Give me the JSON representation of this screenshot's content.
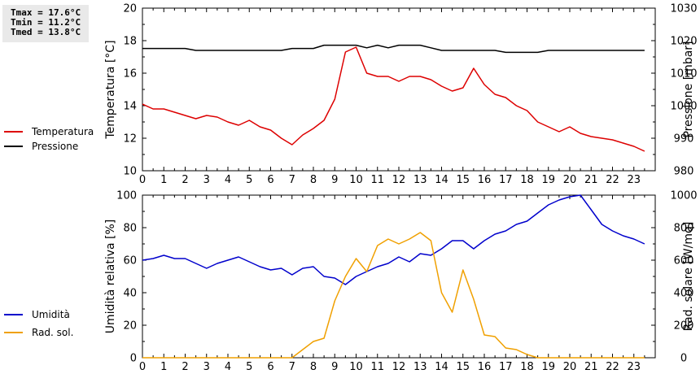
{
  "stats": {
    "tmax": "Tmax = 17.6°C",
    "tmin": "Tmin = 11.2°C",
    "tmed": "Tmed = 13.8°C"
  },
  "chart_data": [
    {
      "type": "line",
      "xlim": [
        0,
        24
      ],
      "x_ticks": [
        0,
        1,
        2,
        3,
        4,
        5,
        6,
        7,
        8,
        9,
        10,
        11,
        12,
        13,
        14,
        15,
        16,
        17,
        18,
        19,
        20,
        21,
        22,
        23
      ],
      "left_axis": {
        "label": "Temperatura [°C]",
        "ylim": [
          10,
          20
        ],
        "ticks": [
          10,
          12,
          14,
          16,
          18,
          20
        ]
      },
      "right_axis": {
        "label": "Pressione [mbar]",
        "ylim": [
          980,
          1030
        ],
        "ticks": [
          980,
          990,
          1000,
          1010,
          1020,
          1030
        ]
      },
      "legend_position": "left",
      "series": [
        {
          "name": "Temperatura",
          "axis": "left",
          "color": "#dd0000",
          "x": [
            0,
            0.5,
            1,
            1.5,
            2,
            2.5,
            3,
            3.5,
            4,
            4.5,
            5,
            5.5,
            6,
            6.5,
            7,
            7.5,
            8,
            8.5,
            9,
            9.5,
            10,
            10.5,
            11,
            11.5,
            12,
            12.5,
            13,
            13.5,
            14,
            14.5,
            15,
            15.5,
            16,
            16.5,
            17,
            17.5,
            18,
            18.5,
            19,
            19.5,
            20,
            20.5,
            21,
            21.5,
            22,
            22.5,
            23,
            23.5
          ],
          "y": [
            14.1,
            13.8,
            13.8,
            13.6,
            13.4,
            13.2,
            13.4,
            13.3,
            13.0,
            12.8,
            13.1,
            12.7,
            12.5,
            12.0,
            11.6,
            12.2,
            12.6,
            13.1,
            14.4,
            17.3,
            17.6,
            16.0,
            15.8,
            15.8,
            15.5,
            15.8,
            15.8,
            15.6,
            15.2,
            14.9,
            15.1,
            16.3,
            15.3,
            14.7,
            14.5,
            14.0,
            13.7,
            13.0,
            12.7,
            12.4,
            12.7,
            12.3,
            12.1,
            12.0,
            11.9,
            11.7,
            11.5,
            11.2
          ]
        },
        {
          "name": "Pressione",
          "axis": "right",
          "color": "#000000",
          "x": [
            0,
            1,
            2,
            2.5,
            3,
            4,
            5,
            6,
            6.5,
            7,
            8,
            8.5,
            9,
            10,
            10.5,
            11,
            11.5,
            12,
            13,
            13.5,
            14,
            15,
            16,
            16.5,
            17,
            18,
            18.5,
            19,
            20,
            21,
            22,
            23,
            23.5
          ],
          "y": [
            1017.6,
            1017.6,
            1017.6,
            1017.0,
            1017.0,
            1017.0,
            1017.0,
            1017.0,
            1017.0,
            1017.6,
            1017.6,
            1018.6,
            1018.6,
            1018.6,
            1017.8,
            1018.6,
            1017.8,
            1018.6,
            1018.6,
            1017.8,
            1017.0,
            1017.0,
            1017.0,
            1017.0,
            1016.4,
            1016.4,
            1016.4,
            1017.0,
            1017.0,
            1017.0,
            1017.0,
            1017.0,
            1017.0
          ]
        }
      ]
    },
    {
      "type": "line",
      "xlim": [
        0,
        24
      ],
      "x_ticks": [
        0,
        1,
        2,
        3,
        4,
        5,
        6,
        7,
        8,
        9,
        10,
        11,
        12,
        13,
        14,
        15,
        16,
        17,
        18,
        19,
        20,
        21,
        22,
        23
      ],
      "left_axis": {
        "label": "Umidità relativa [%]",
        "ylim": [
          0,
          100
        ],
        "ticks": [
          0,
          20,
          40,
          60,
          80,
          100
        ]
      },
      "right_axis": {
        "label": "Rad. solare [W/mq]",
        "ylim": [
          0,
          1000
        ],
        "ticks": [
          0,
          200,
          400,
          600,
          800,
          1000
        ]
      },
      "legend_position": "left",
      "series": [
        {
          "name": "Umidità",
          "axis": "left",
          "color": "#0000cc",
          "x": [
            0,
            0.5,
            1,
            1.5,
            2,
            2.5,
            3,
            3.5,
            4,
            4.5,
            5,
            5.5,
            6,
            6.5,
            7,
            7.5,
            8,
            8.5,
            9,
            9.5,
            10,
            10.5,
            11,
            11.5,
            12,
            12.5,
            13,
            13.5,
            14,
            14.5,
            15,
            15.5,
            16,
            16.5,
            17,
            17.5,
            18,
            18.5,
            19,
            19.5,
            20,
            20.5,
            21,
            21.5,
            22,
            22.5,
            23,
            23.5
          ],
          "y": [
            60,
            61,
            63,
            61,
            61,
            58,
            55,
            58,
            60,
            62,
            59,
            56,
            54,
            55,
            51,
            55,
            56,
            50,
            49,
            45,
            50,
            53,
            56,
            58,
            62,
            59,
            64,
            63,
            67,
            72,
            72,
            67,
            72,
            76,
            78,
            82,
            84,
            89,
            94,
            97,
            99,
            100,
            91,
            82,
            78,
            75,
            73,
            70
          ]
        },
        {
          "name": "Rad. sol.",
          "axis": "right",
          "color": "#f0a000",
          "x": [
            0,
            1,
            2,
            3,
            4,
            5,
            6,
            7,
            7.5,
            8,
            8.5,
            9,
            9.5,
            10,
            10.5,
            11,
            11.5,
            12,
            12.5,
            13,
            13.5,
            14,
            14.5,
            15,
            15.5,
            16,
            16.5,
            17,
            17.5,
            18,
            18.5,
            19,
            20,
            21,
            22,
            23,
            23.5
          ],
          "y": [
            0,
            0,
            0,
            0,
            0,
            0,
            0,
            0,
            50,
            100,
            120,
            350,
            500,
            610,
            530,
            690,
            730,
            700,
            730,
            770,
            720,
            400,
            280,
            540,
            360,
            140,
            130,
            60,
            50,
            20,
            0,
            0,
            0,
            0,
            0,
            0,
            0
          ]
        }
      ]
    }
  ]
}
